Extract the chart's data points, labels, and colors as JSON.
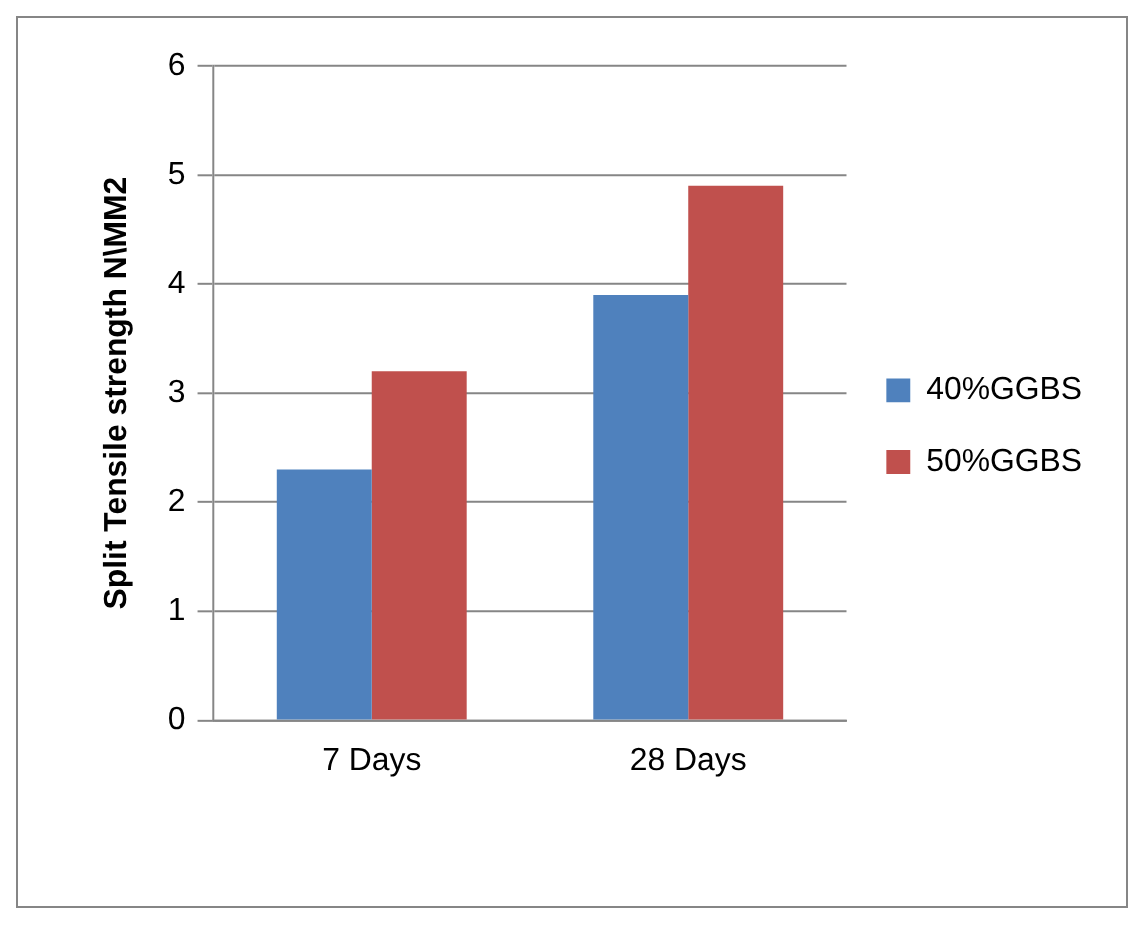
{
  "chart_data": {
    "type": "bar",
    "ylabel": "Split Tensile strength N\\MM2",
    "categories": [
      "7 Days",
      "28 Days"
    ],
    "series": [
      {
        "name": "40%GGBS",
        "color": "#4f81bd",
        "values": [
          2.3,
          3.9
        ]
      },
      {
        "name": "50%GGBS",
        "color": "#c0504d",
        "values": [
          3.2,
          4.9
        ]
      }
    ],
    "ylim": [
      0,
      6
    ],
    "yticks": [
      0,
      1,
      2,
      3,
      4,
      5,
      6
    ],
    "grid": "y",
    "legend": "right"
  }
}
